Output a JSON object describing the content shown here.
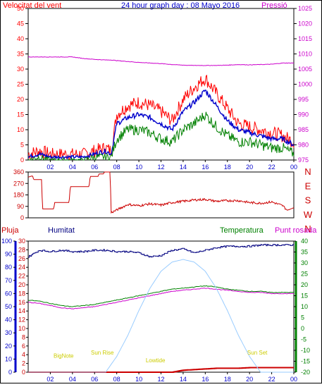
{
  "title": "24 hour graph day : 08 Mayo 2016",
  "colors": {
    "wind": "#ff0000",
    "gust_avg": "#0000cc",
    "wind_low": "#008000",
    "pressure": "#cc00cc",
    "direction": "#cc0000",
    "humidity": "#000080",
    "temperature": "#008000",
    "dewpoint": "#cc00cc",
    "rain": "#cc0000",
    "solar": "#99ccff",
    "astro": "#cccc00",
    "axis": "#000000"
  },
  "x_axis": {
    "ticks": [
      "02",
      "04",
      "06",
      "08",
      "10",
      "12",
      "14",
      "16",
      "18",
      "20",
      "22",
      "00"
    ]
  },
  "chart_data": [
    {
      "type": "line",
      "name": "wind-pressure",
      "ylabel_left": "Velocitat del vent",
      "ylabel_right": "Pressió",
      "ylim_left": [
        0,
        50
      ],
      "ylim_right": [
        975,
        1025
      ],
      "y_ticks_left": [
        0,
        5,
        10,
        15,
        20,
        25,
        30,
        35,
        40,
        45,
        50
      ],
      "y_ticks_right": [
        975,
        980,
        985,
        990,
        995,
        1000,
        1005,
        1010,
        1015,
        1020,
        1025
      ],
      "x_hours": [
        0,
        1,
        2,
        3,
        4,
        5,
        6,
        7,
        7.5,
        8,
        9,
        10,
        11,
        12,
        13,
        14,
        15,
        16,
        17,
        18,
        19,
        20,
        21,
        22,
        23,
        24
      ],
      "series": [
        {
          "key": "gust",
          "axis": "left",
          "values": [
            2,
            3,
            2,
            2,
            2,
            2,
            3,
            4,
            3,
            15,
            18,
            19,
            18,
            16,
            13,
            20,
            24,
            27,
            22,
            17,
            12,
            11,
            10,
            9,
            8,
            6
          ]
        },
        {
          "key": "avg",
          "axis": "left",
          "values": [
            1,
            2,
            1,
            1,
            1,
            1,
            2,
            3,
            2,
            12,
            14,
            15,
            14,
            12,
            10,
            16,
            19,
            23,
            18,
            13,
            10,
            9,
            8,
            7,
            7,
            5
          ]
        },
        {
          "key": "low",
          "axis": "left",
          "values": [
            0,
            1,
            0,
            0,
            0,
            0,
            1,
            1,
            1,
            7,
            10,
            10,
            9,
            7,
            6,
            10,
            12,
            15,
            11,
            8,
            6,
            6,
            5,
            4,
            4,
            2
          ]
        },
        {
          "key": "pressure",
          "axis": "right",
          "values": [
            1009,
            1009,
            1009,
            1009,
            1009,
            1008.5,
            1008.2,
            1008,
            1008,
            1007.8,
            1007.5,
            1007.2,
            1007,
            1006.8,
            1006.5,
            1006.3,
            1006.2,
            1006.2,
            1006.2,
            1006.3,
            1006.5,
            1006.4,
            1006.5,
            1006.6,
            1007,
            1007
          ]
        }
      ]
    },
    {
      "type": "line",
      "name": "wind-direction",
      "ylim": [
        0,
        360
      ],
      "y_ticks": [
        0,
        90,
        180,
        270,
        360
      ],
      "compass_labels": [
        "N",
        "W",
        "S",
        "E",
        "N"
      ],
      "x_hours": [
        0,
        0.4,
        0.5,
        1.2,
        1.3,
        2.3,
        2.4,
        3.7,
        3.8,
        5.5,
        5.6,
        6.3,
        6.4,
        6.8,
        6.9,
        7.4,
        7.5,
        9,
        10,
        11,
        12,
        13,
        14,
        15,
        16,
        17,
        18,
        19,
        20,
        21,
        22,
        23,
        23.4,
        23.6,
        24
      ],
      "values": [
        320,
        330,
        300,
        300,
        70,
        70,
        120,
        120,
        245,
        245,
        325,
        325,
        345,
        345,
        360,
        360,
        40,
        105,
        95,
        110,
        100,
        120,
        130,
        140,
        145,
        130,
        135,
        135,
        120,
        115,
        125,
        95,
        60,
        65,
        80
      ]
    },
    {
      "type": "line",
      "name": "humidity-temperature",
      "ylabel_left1": "Pluja",
      "ylabel_left2": "Humitat",
      "ylabel_right1": "Temperatura",
      "ylabel_right2": "Punt rosada",
      "ylim_left_humidity": [
        0,
        100
      ],
      "ylim_left_rain": [
        0,
        30
      ],
      "ylim_right": [
        -20,
        40
      ],
      "y_ticks_humidity": [
        0,
        10,
        20,
        30,
        40,
        50,
        60,
        70,
        80,
        90,
        100
      ],
      "y_ticks_rain": [
        0,
        2,
        4,
        6,
        8,
        10,
        12,
        14,
        16,
        18,
        20,
        22,
        24,
        26,
        28,
        30
      ],
      "y_ticks_right": [
        -20,
        -15,
        -10,
        -5,
        0,
        5,
        10,
        15,
        20,
        25,
        30,
        35,
        40
      ],
      "annotations": [
        {
          "label": "BigNote",
          "hour": 3.2,
          "value": 11
        },
        {
          "label": "Sun Rise",
          "hour": 6.7,
          "value": 13.5
        },
        {
          "label": "Lowtide",
          "hour": 11.5,
          "value": 7.5
        },
        {
          "label": "Sun Set",
          "hour": 20.7,
          "value": 13.5
        }
      ],
      "x_hours": [
        0,
        1,
        2,
        3,
        4,
        5,
        6,
        7,
        8,
        9,
        10,
        11,
        12,
        13,
        14,
        15,
        16,
        17,
        18,
        19,
        20,
        21,
        22,
        23,
        24
      ],
      "series": [
        {
          "key": "humidity",
          "axis": "humidity",
          "values": [
            88,
            93,
            92,
            93,
            92,
            92,
            93,
            93,
            92,
            92,
            91,
            88,
            89,
            93,
            94,
            91,
            93,
            95,
            96,
            96,
            96,
            97,
            97,
            97,
            97
          ]
        },
        {
          "key": "temperature",
          "axis": "right",
          "values": [
            13,
            12.5,
            11.5,
            10.5,
            10,
            10.5,
            11,
            12,
            13,
            14,
            15,
            16,
            17,
            18,
            18.5,
            19,
            19.5,
            19,
            18,
            17.5,
            17,
            17,
            16.5,
            16.5,
            16.5
          ]
        },
        {
          "key": "dewpoint",
          "axis": "right",
          "values": [
            12,
            11.5,
            10.5,
            9.5,
            9,
            9.5,
            10,
            11,
            12,
            13,
            14,
            15,
            16,
            17,
            17.5,
            18,
            18.5,
            18,
            17.5,
            17,
            16.5,
            16.5,
            16,
            16,
            16
          ]
        },
        {
          "key": "rain",
          "axis": "humidity",
          "values": [
            0,
            0,
            0,
            0,
            0,
            0,
            0,
            0,
            0,
            0,
            0,
            0,
            0,
            0,
            1.5,
            2,
            2.5,
            3,
            3,
            3,
            3.5,
            3.5,
            3.5,
            3.5,
            3.5
          ]
        },
        {
          "key": "solar",
          "axis": "humidity",
          "values": [
            0,
            0,
            0,
            0,
            0,
            0,
            0,
            0,
            12,
            28,
            47,
            64,
            77,
            84,
            86,
            84,
            77,
            64,
            47,
            28,
            12,
            0,
            0,
            0,
            0
          ]
        }
      ]
    }
  ]
}
